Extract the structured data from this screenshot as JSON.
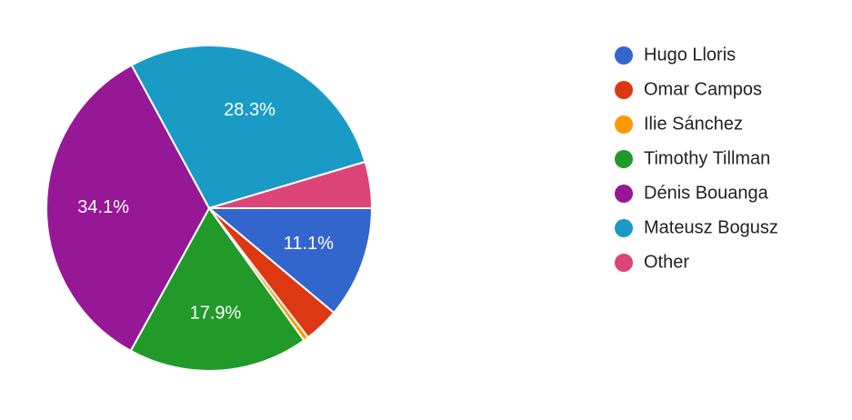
{
  "chart_data": {
    "type": "pie",
    "categories": [
      "Hugo Lloris",
      "Omar Campos",
      "Ilie Sánchez",
      "Timothy Tillman",
      "Dénis Bouanga",
      "Mateusz Bogusz",
      "Other"
    ],
    "values": [
      11.1,
      3.5,
      0.5,
      17.9,
      34.1,
      28.3,
      4.6
    ],
    "value_labels": [
      "11.1%",
      null,
      null,
      "17.9%",
      "34.1%",
      "28.3%",
      null
    ],
    "colors": [
      "#3366cc",
      "#dc3912",
      "#ff9900",
      "#219a2a",
      "#971897",
      "#1a9bc6",
      "#dd4477"
    ],
    "legend": "right"
  }
}
